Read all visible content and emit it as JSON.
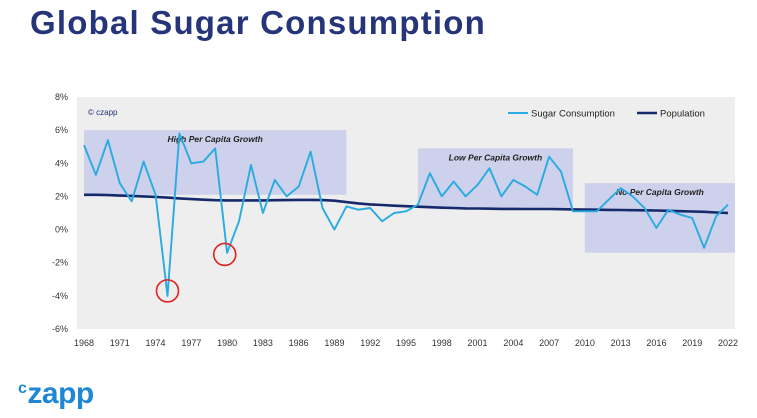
{
  "page": {
    "title": "Global Sugar Consumption",
    "logo_sup": "c",
    "logo_main": "zapp",
    "watermark": "© czapp"
  },
  "colors": {
    "title": "#26357a",
    "sugar": "#29abe2",
    "population": "#142a6b",
    "band": "#c7cbea",
    "plot_bg": "#eeeeee",
    "circle": "#e02020",
    "logo": "#1e88d6"
  },
  "chart_data": {
    "type": "line",
    "title": "",
    "xlabel": "",
    "ylabel": "",
    "ylim": [
      -6,
      8
    ],
    "yticks": [
      -6,
      -4,
      -2,
      0,
      2,
      4,
      6,
      8
    ],
    "ytick_labels": [
      "-6%",
      "-4%",
      "-2%",
      "0%",
      "2%",
      "4%",
      "6%",
      "8%"
    ],
    "xlim": [
      1968,
      2022
    ],
    "xticks": [
      1968,
      1971,
      1974,
      1977,
      1980,
      1983,
      1986,
      1989,
      1992,
      1995,
      1998,
      2001,
      2004,
      2007,
      2010,
      2013,
      2016,
      2019,
      2022
    ],
    "grid": false,
    "legend_position": "top-right",
    "series": [
      {
        "name": "Sugar Consumption",
        "color_key": "sugar",
        "x": [
          1968,
          1969,
          1970,
          1971,
          1972,
          1973,
          1974,
          1975,
          1976,
          1977,
          1978,
          1979,
          1980,
          1981,
          1982,
          1983,
          1984,
          1985,
          1986,
          1987,
          1988,
          1989,
          1990,
          1991,
          1992,
          1993,
          1994,
          1995,
          1996,
          1997,
          1998,
          1999,
          2000,
          2001,
          2002,
          2003,
          2004,
          2005,
          2006,
          2007,
          2008,
          2009,
          2010,
          2011,
          2012,
          2013,
          2014,
          2015,
          2016,
          2017,
          2018,
          2019,
          2020,
          2021,
          2022
        ],
        "y": [
          5.1,
          3.3,
          5.4,
          2.8,
          1.7,
          4.1,
          2.1,
          -4.0,
          5.8,
          4.0,
          4.1,
          4.9,
          -1.4,
          0.5,
          3.9,
          1.0,
          3.0,
          2.0,
          2.6,
          4.7,
          1.3,
          0.0,
          1.4,
          1.2,
          1.3,
          0.5,
          1.0,
          1.1,
          1.5,
          3.4,
          2.0,
          2.9,
          2.0,
          2.7,
          3.7,
          2.0,
          3.0,
          2.6,
          2.1,
          4.4,
          3.5,
          1.1,
          1.1,
          1.1,
          1.8,
          2.5,
          2.0,
          1.3,
          0.1,
          1.2,
          0.9,
          0.7,
          -1.1,
          0.8,
          1.5
        ]
      },
      {
        "name": "Population",
        "color_key": "population",
        "x": [
          1968,
          1969,
          1970,
          1971,
          1972,
          1973,
          1974,
          1975,
          1976,
          1977,
          1978,
          1979,
          1980,
          1981,
          1982,
          1983,
          1984,
          1985,
          1986,
          1987,
          1988,
          1989,
          1990,
          1991,
          1992,
          1993,
          1994,
          1995,
          1996,
          1997,
          1998,
          1999,
          2000,
          2001,
          2002,
          2003,
          2004,
          2005,
          2006,
          2007,
          2008,
          2009,
          2010,
          2011,
          2012,
          2013,
          2014,
          2015,
          2016,
          2017,
          2018,
          2019,
          2020,
          2021,
          2022
        ],
        "y": [
          2.1,
          2.1,
          2.08,
          2.05,
          2.03,
          2.0,
          1.97,
          1.93,
          1.88,
          1.84,
          1.8,
          1.77,
          1.76,
          1.76,
          1.76,
          1.76,
          1.77,
          1.78,
          1.79,
          1.79,
          1.78,
          1.74,
          1.66,
          1.58,
          1.52,
          1.48,
          1.44,
          1.41,
          1.38,
          1.35,
          1.32,
          1.3,
          1.28,
          1.27,
          1.26,
          1.25,
          1.25,
          1.24,
          1.24,
          1.24,
          1.23,
          1.22,
          1.21,
          1.2,
          1.19,
          1.18,
          1.17,
          1.16,
          1.15,
          1.13,
          1.11,
          1.09,
          1.07,
          1.03,
          1.0
        ]
      }
    ],
    "regions": [
      {
        "label": "High Per Capita Growth",
        "x0": 1968,
        "x1": 1990,
        "y0": 2.1,
        "y1": 6.0
      },
      {
        "label": "Low Per Capita Growth",
        "x0": 1996,
        "x1": 2009,
        "y0": 1.3,
        "y1": 4.9
      },
      {
        "label": "No Per Capita Growth",
        "x0": 2010,
        "x1": 2022.6,
        "y0": -1.4,
        "y1": 2.8
      }
    ],
    "highlights": [
      {
        "x": 1975,
        "y": -3.7
      },
      {
        "x": 1979.8,
        "y": -1.5
      }
    ]
  }
}
